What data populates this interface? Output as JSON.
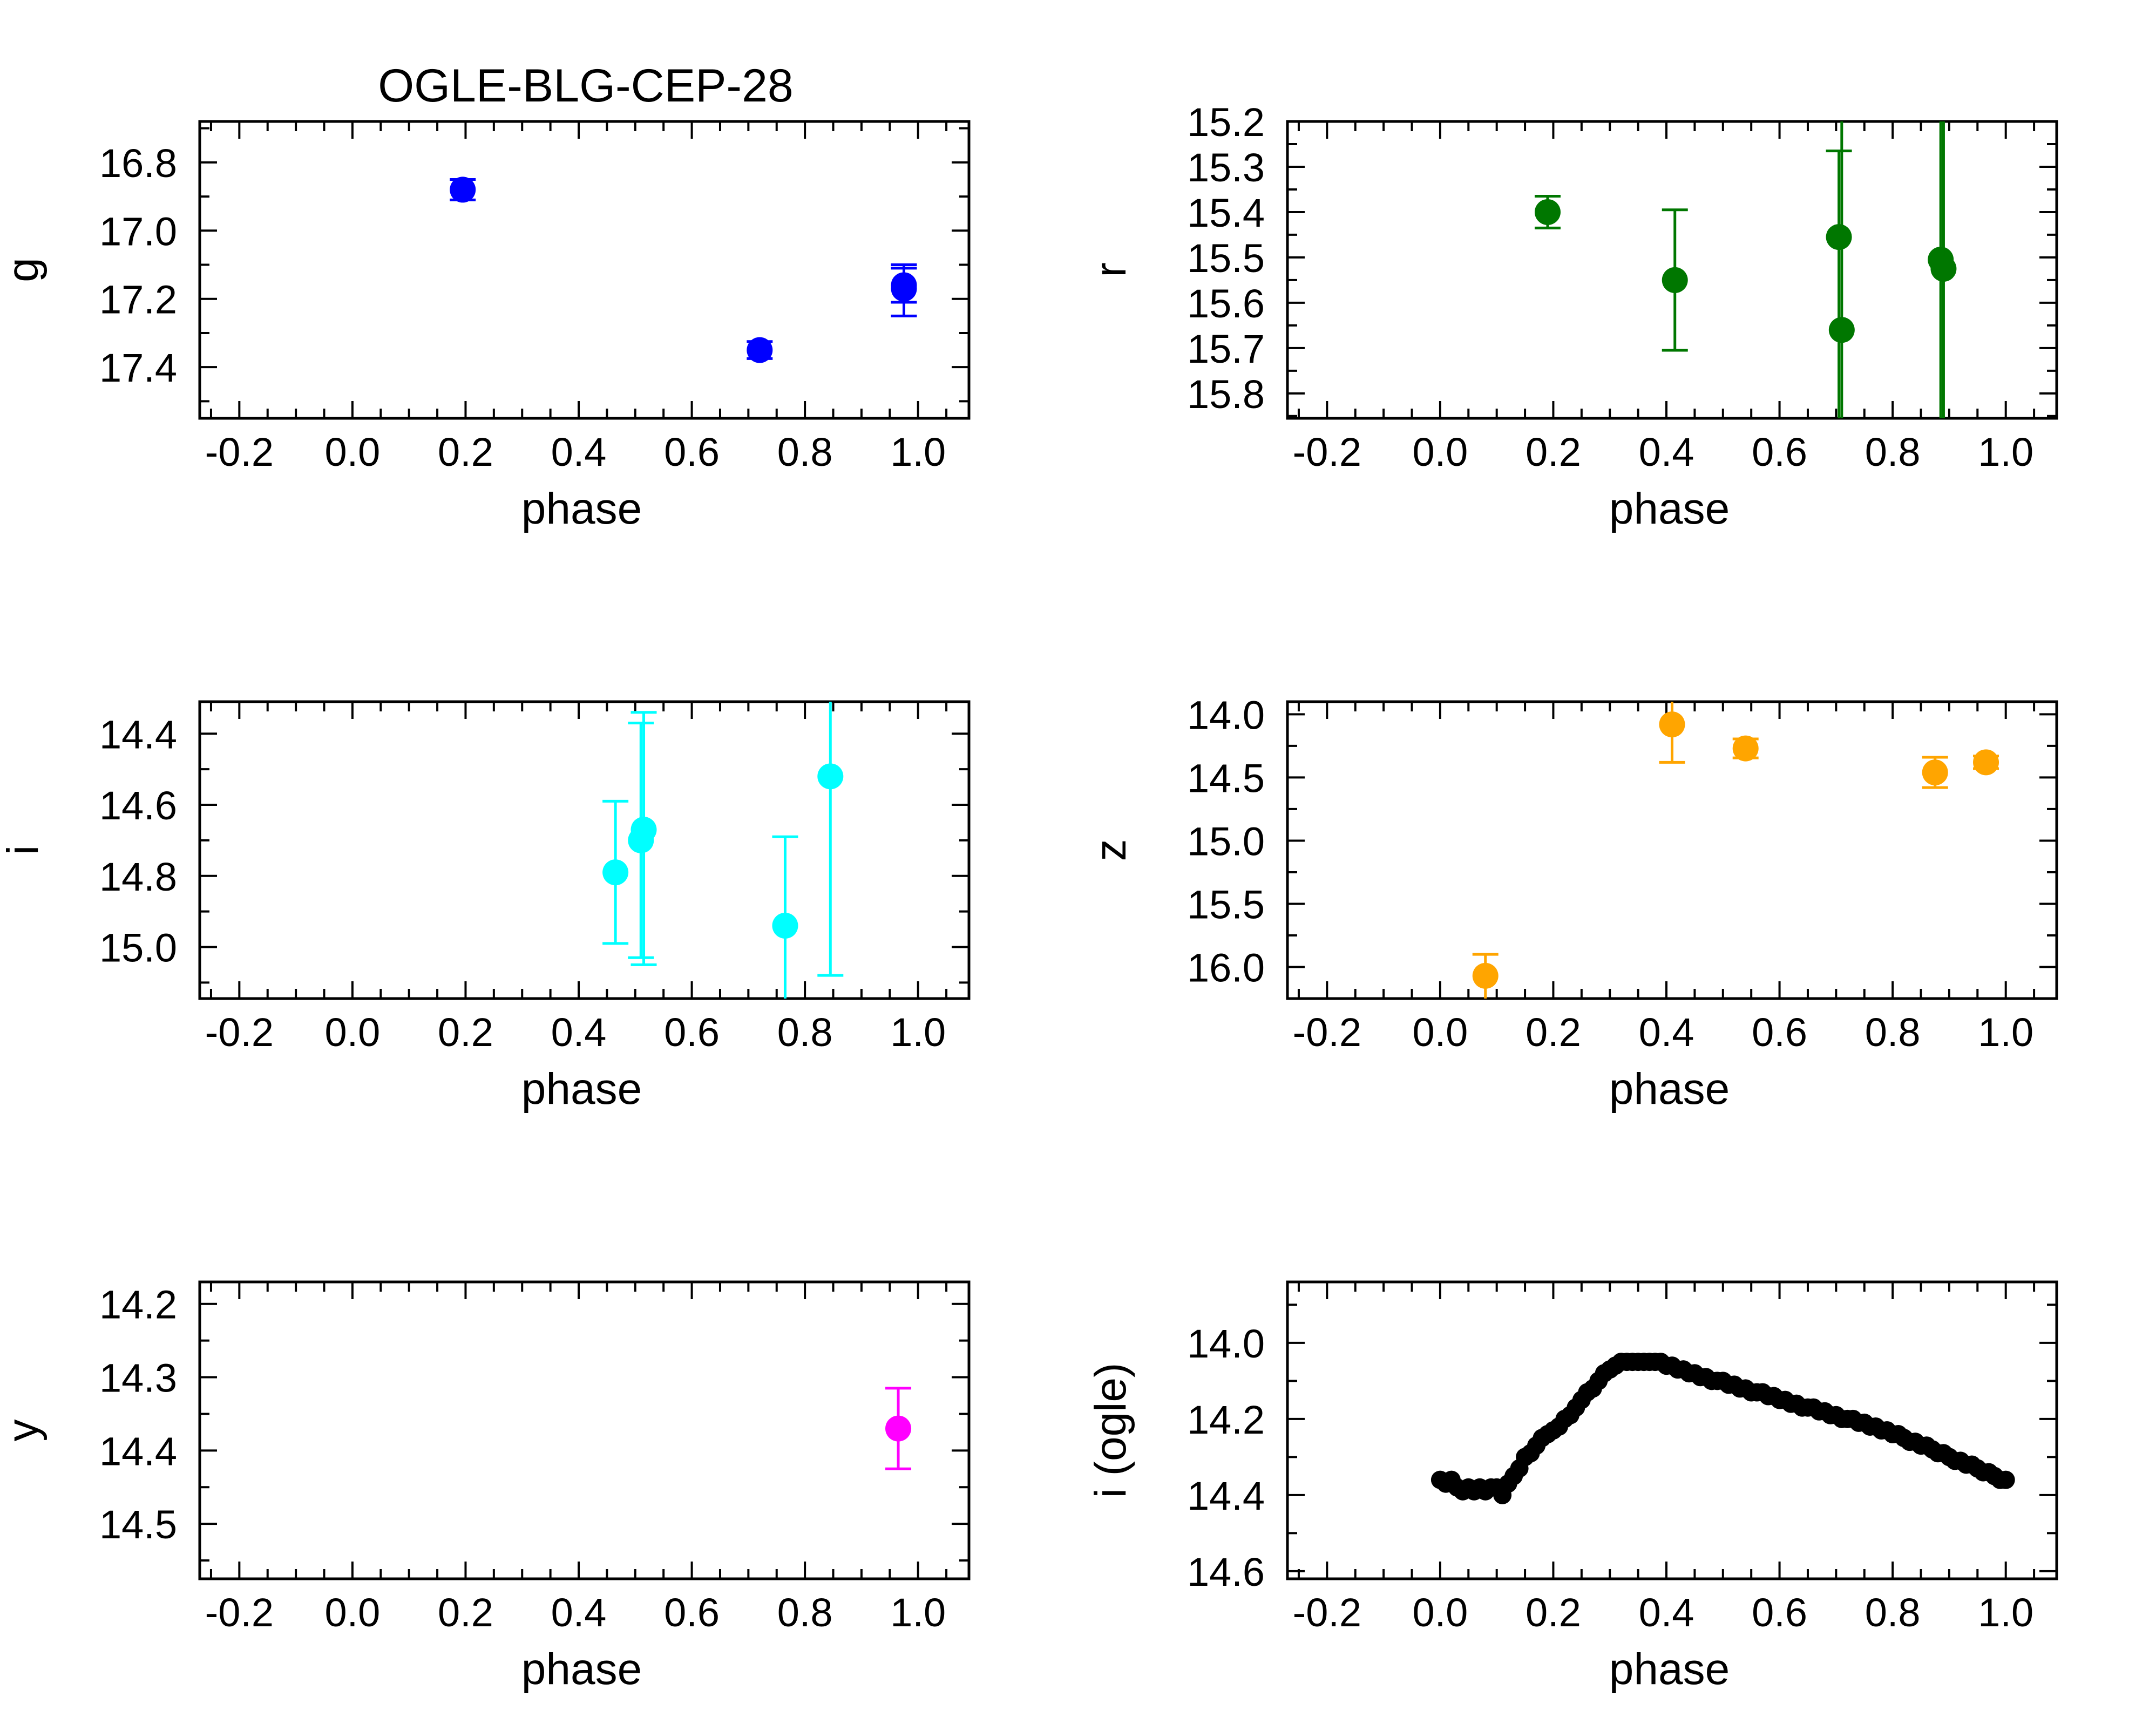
{
  "figure_title": "OGLE-BLG-CEP-28",
  "chart_data": [
    {
      "type": "scatter",
      "panel": "g",
      "xlabel": "phase",
      "ylabel": "g",
      "xlim": [
        -0.27,
        1.09
      ],
      "ylim": [
        17.55,
        16.68
      ],
      "y_inverted": true,
      "xticks": [
        -0.2,
        0.0,
        0.2,
        0.4,
        0.6,
        0.8,
        1.0
      ],
      "xtick_labels": [
        "-0.2",
        "0.0",
        "0.2",
        "0.4",
        "0.6",
        "0.8",
        "1.0"
      ],
      "yticks": [
        16.8,
        17.0,
        17.2,
        17.4
      ],
      "ytick_labels": [
        "16.8",
        "17.0",
        "17.2",
        "17.4"
      ],
      "color": "#0000ff",
      "points": [
        {
          "x": 0.195,
          "y": 16.88,
          "err_lo": 0.03,
          "err_hi": 0.03
        },
        {
          "x": 0.72,
          "y": 17.35,
          "err_lo": 0.025,
          "err_hi": 0.025
        },
        {
          "x": 0.975,
          "y": 17.17,
          "err_lo": 0.07,
          "err_hi": 0.08
        },
        {
          "x": 0.975,
          "y": 17.16,
          "err_lo": 0.05,
          "err_hi": 0.05
        }
      ]
    },
    {
      "type": "scatter",
      "panel": "r",
      "xlabel": "phase",
      "ylabel": "r",
      "xlim": [
        -0.27,
        1.09
      ],
      "ylim": [
        15.855,
        15.2
      ],
      "y_inverted": true,
      "xticks": [
        -0.2,
        0.0,
        0.2,
        0.4,
        0.6,
        0.8,
        1.0
      ],
      "xtick_labels": [
        "-0.2",
        "0.0",
        "0.2",
        "0.4",
        "0.6",
        "0.8",
        "1.0"
      ],
      "yticks": [
        15.2,
        15.3,
        15.4,
        15.5,
        15.6,
        15.7,
        15.8
      ],
      "ytick_labels": [
        "15.2",
        "15.3",
        "15.4",
        "15.5",
        "15.6",
        "15.7",
        "15.8"
      ],
      "color": "#007700",
      "points": [
        {
          "x": 0.19,
          "y": 15.4,
          "err_lo": 0.035,
          "err_hi": 0.035
        },
        {
          "x": 0.415,
          "y": 15.55,
          "err_lo": 0.155,
          "err_hi": 0.155
        },
        {
          "x": 0.705,
          "y": 15.455,
          "err_lo": 0.19,
          "err_hi": 0.7
        },
        {
          "x": 0.71,
          "y": 15.66,
          "err_lo": 0.7,
          "err_hi": 0.7
        },
        {
          "x": 0.885,
          "y": 15.505,
          "err_lo": 0.7,
          "err_hi": 0.7
        },
        {
          "x": 0.89,
          "y": 15.525,
          "err_lo": 0.7,
          "err_hi": 0.7
        }
      ]
    },
    {
      "type": "scatter",
      "panel": "i",
      "xlabel": "phase",
      "ylabel": "i",
      "xlim": [
        -0.27,
        1.09
      ],
      "ylim": [
        15.145,
        14.31
      ],
      "y_inverted": true,
      "xticks": [
        -0.2,
        0.0,
        0.2,
        0.4,
        0.6,
        0.8,
        1.0
      ],
      "xtick_labels": [
        "-0.2",
        "0.0",
        "0.2",
        "0.4",
        "0.6",
        "0.8",
        "1.0"
      ],
      "yticks": [
        14.4,
        14.6,
        14.8,
        15.0
      ],
      "ytick_labels": [
        "14.4",
        "14.6",
        "14.8",
        "15.0"
      ],
      "color": "#00ffff",
      "points": [
        {
          "x": 0.465,
          "y": 14.79,
          "err_lo": 0.2,
          "err_hi": 0.2
        },
        {
          "x": 0.51,
          "y": 14.7,
          "err_lo": 0.33,
          "err_hi": 0.33
        },
        {
          "x": 0.515,
          "y": 14.67,
          "err_lo": 0.33,
          "err_hi": 0.38
        },
        {
          "x": 0.765,
          "y": 14.94,
          "err_lo": 0.25,
          "err_hi": 0.3
        },
        {
          "x": 0.845,
          "y": 14.52,
          "err_lo": 0.3,
          "err_hi": 0.56
        }
      ]
    },
    {
      "type": "scatter",
      "panel": "z",
      "xlabel": "phase",
      "ylabel": "z",
      "xlim": [
        -0.27,
        1.09
      ],
      "ylim": [
        16.25,
        13.9
      ],
      "y_inverted": true,
      "xticks": [
        -0.2,
        0.0,
        0.2,
        0.4,
        0.6,
        0.8,
        1.0
      ],
      "xtick_labels": [
        "-0.2",
        "0.0",
        "0.2",
        "0.4",
        "0.6",
        "0.8",
        "1.0"
      ],
      "yticks": [
        14.0,
        14.5,
        15.0,
        15.5,
        16.0
      ],
      "ytick_labels": [
        "14.0",
        "14.5",
        "15.0",
        "15.5",
        "16.0"
      ],
      "color": "#ffa500",
      "points": [
        {
          "x": 0.08,
          "y": 16.07,
          "err_lo": 0.17,
          "err_hi": 0.25
        },
        {
          "x": 0.41,
          "y": 14.08,
          "err_lo": 0.25,
          "err_hi": 0.3
        },
        {
          "x": 0.54,
          "y": 14.27,
          "err_lo": 0.075,
          "err_hi": 0.075
        },
        {
          "x": 0.875,
          "y": 14.46,
          "err_lo": 0.12,
          "err_hi": 0.12
        },
        {
          "x": 0.965,
          "y": 14.38,
          "err_lo": 0.05,
          "err_hi": 0.05
        }
      ]
    },
    {
      "type": "scatter",
      "panel": "y",
      "xlabel": "phase",
      "ylabel": "y",
      "xlim": [
        -0.27,
        1.09
      ],
      "ylim": [
        14.575,
        14.17
      ],
      "y_inverted": true,
      "xticks": [
        -0.2,
        0.0,
        0.2,
        0.4,
        0.6,
        0.8,
        1.0
      ],
      "xtick_labels": [
        "-0.2",
        "0.0",
        "0.2",
        "0.4",
        "0.6",
        "0.8",
        "1.0"
      ],
      "yticks": [
        14.2,
        14.3,
        14.4,
        14.5
      ],
      "ytick_labels": [
        "14.2",
        "14.3",
        "14.4",
        "14.5"
      ],
      "color": "#ff00ff",
      "points": [
        {
          "x": 0.965,
          "y": 14.37,
          "err_lo": 0.055,
          "err_hi": 0.055
        }
      ]
    },
    {
      "type": "scatter",
      "panel": "i (ogle)",
      "xlabel": "phase",
      "ylabel": "i (ogle)",
      "xlim": [
        -0.27,
        1.09
      ],
      "ylim": [
        14.62,
        13.84
      ],
      "y_inverted": true,
      "xticks": [
        -0.2,
        0.0,
        0.2,
        0.4,
        0.6,
        0.8,
        1.0
      ],
      "xtick_labels": [
        "-0.2",
        "0.0",
        "0.2",
        "0.4",
        "0.6",
        "0.8",
        "1.0"
      ],
      "yticks": [
        14.0,
        14.2,
        14.4,
        14.6
      ],
      "ytick_labels": [
        "14.0",
        "14.2",
        "14.4",
        "14.6"
      ],
      "color": "#000000",
      "points": [
        {
          "x": 0.0,
          "y": 14.36
        },
        {
          "x": 0.01,
          "y": 14.37
        },
        {
          "x": 0.02,
          "y": 14.36
        },
        {
          "x": 0.03,
          "y": 14.38
        },
        {
          "x": 0.04,
          "y": 14.39
        },
        {
          "x": 0.05,
          "y": 14.38
        },
        {
          "x": 0.06,
          "y": 14.39
        },
        {
          "x": 0.07,
          "y": 14.38
        },
        {
          "x": 0.08,
          "y": 14.39
        },
        {
          "x": 0.09,
          "y": 14.38
        },
        {
          "x": 0.1,
          "y": 14.38
        },
        {
          "x": 0.11,
          "y": 14.4
        },
        {
          "x": 0.12,
          "y": 14.37
        },
        {
          "x": 0.13,
          "y": 14.35
        },
        {
          "x": 0.14,
          "y": 14.33
        },
        {
          "x": 0.15,
          "y": 14.3
        },
        {
          "x": 0.16,
          "y": 14.29
        },
        {
          "x": 0.17,
          "y": 14.27
        },
        {
          "x": 0.18,
          "y": 14.25
        },
        {
          "x": 0.19,
          "y": 14.24
        },
        {
          "x": 0.2,
          "y": 14.23
        },
        {
          "x": 0.21,
          "y": 14.22
        },
        {
          "x": 0.22,
          "y": 14.2
        },
        {
          "x": 0.23,
          "y": 14.19
        },
        {
          "x": 0.24,
          "y": 14.17
        },
        {
          "x": 0.25,
          "y": 14.15
        },
        {
          "x": 0.26,
          "y": 14.13
        },
        {
          "x": 0.27,
          "y": 14.12
        },
        {
          "x": 0.28,
          "y": 14.1
        },
        {
          "x": 0.29,
          "y": 14.08
        },
        {
          "x": 0.3,
          "y": 14.07
        },
        {
          "x": 0.31,
          "y": 14.06
        },
        {
          "x": 0.32,
          "y": 14.05
        },
        {
          "x": 0.33,
          "y": 14.05
        },
        {
          "x": 0.34,
          "y": 14.05
        },
        {
          "x": 0.35,
          "y": 14.05
        },
        {
          "x": 0.36,
          "y": 14.05
        },
        {
          "x": 0.37,
          "y": 14.05
        },
        {
          "x": 0.38,
          "y": 14.05
        },
        {
          "x": 0.39,
          "y": 14.05
        },
        {
          "x": 0.4,
          "y": 14.06
        },
        {
          "x": 0.41,
          "y": 14.06
        },
        {
          "x": 0.42,
          "y": 14.07
        },
        {
          "x": 0.43,
          "y": 14.07
        },
        {
          "x": 0.44,
          "y": 14.08
        },
        {
          "x": 0.45,
          "y": 14.08
        },
        {
          "x": 0.46,
          "y": 14.09
        },
        {
          "x": 0.47,
          "y": 14.09
        },
        {
          "x": 0.48,
          "y": 14.1
        },
        {
          "x": 0.49,
          "y": 14.1
        },
        {
          "x": 0.5,
          "y": 14.1
        },
        {
          "x": 0.51,
          "y": 14.11
        },
        {
          "x": 0.52,
          "y": 14.11
        },
        {
          "x": 0.53,
          "y": 14.12
        },
        {
          "x": 0.54,
          "y": 14.12
        },
        {
          "x": 0.55,
          "y": 14.13
        },
        {
          "x": 0.56,
          "y": 14.13
        },
        {
          "x": 0.57,
          "y": 14.13
        },
        {
          "x": 0.58,
          "y": 14.14
        },
        {
          "x": 0.59,
          "y": 14.14
        },
        {
          "x": 0.6,
          "y": 14.15
        },
        {
          "x": 0.61,
          "y": 14.15
        },
        {
          "x": 0.62,
          "y": 14.16
        },
        {
          "x": 0.63,
          "y": 14.16
        },
        {
          "x": 0.64,
          "y": 14.17
        },
        {
          "x": 0.65,
          "y": 14.17
        },
        {
          "x": 0.66,
          "y": 14.17
        },
        {
          "x": 0.67,
          "y": 14.18
        },
        {
          "x": 0.68,
          "y": 14.18
        },
        {
          "x": 0.69,
          "y": 14.19
        },
        {
          "x": 0.7,
          "y": 14.19
        },
        {
          "x": 0.71,
          "y": 14.2
        },
        {
          "x": 0.72,
          "y": 14.2
        },
        {
          "x": 0.73,
          "y": 14.2
        },
        {
          "x": 0.74,
          "y": 14.21
        },
        {
          "x": 0.75,
          "y": 14.21
        },
        {
          "x": 0.76,
          "y": 14.22
        },
        {
          "x": 0.77,
          "y": 14.22
        },
        {
          "x": 0.78,
          "y": 14.23
        },
        {
          "x": 0.79,
          "y": 14.23
        },
        {
          "x": 0.8,
          "y": 14.24
        },
        {
          "x": 0.81,
          "y": 14.24
        },
        {
          "x": 0.82,
          "y": 14.25
        },
        {
          "x": 0.83,
          "y": 14.26
        },
        {
          "x": 0.84,
          "y": 14.26
        },
        {
          "x": 0.85,
          "y": 14.27
        },
        {
          "x": 0.86,
          "y": 14.27
        },
        {
          "x": 0.87,
          "y": 14.28
        },
        {
          "x": 0.88,
          "y": 14.29
        },
        {
          "x": 0.89,
          "y": 14.29
        },
        {
          "x": 0.9,
          "y": 14.3
        },
        {
          "x": 0.91,
          "y": 14.31
        },
        {
          "x": 0.92,
          "y": 14.31
        },
        {
          "x": 0.93,
          "y": 14.32
        },
        {
          "x": 0.94,
          "y": 14.32
        },
        {
          "x": 0.95,
          "y": 14.33
        },
        {
          "x": 0.96,
          "y": 14.34
        },
        {
          "x": 0.97,
          "y": 14.34
        },
        {
          "x": 0.98,
          "y": 14.35
        },
        {
          "x": 0.99,
          "y": 14.36
        },
        {
          "x": 1.0,
          "y": 14.36
        }
      ]
    }
  ]
}
